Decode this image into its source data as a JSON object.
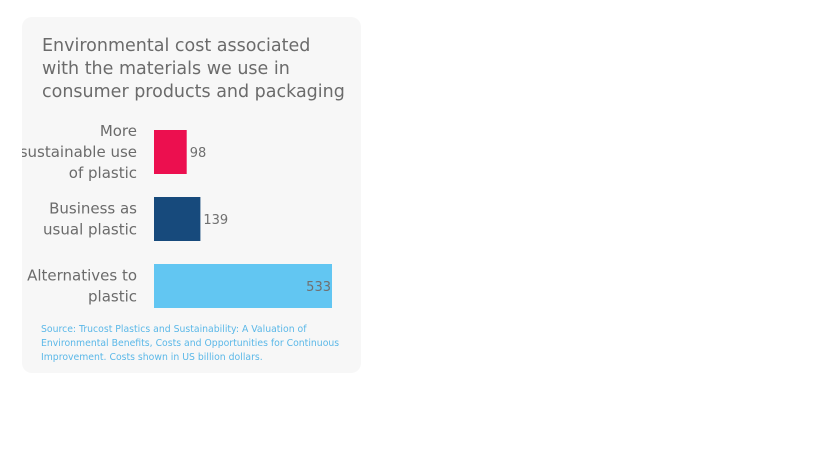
{
  "chart_data": {
    "type": "bar",
    "orientation": "horizontal",
    "title": "Environmental cost associated with the materials we use in consumer products and packaging",
    "categories": [
      [
        "More",
        "sustainable use",
        "of plastic"
      ],
      [
        "Business as",
        "usual plastic"
      ],
      [
        "Alternatives to",
        "plastic"
      ]
    ],
    "values": [
      98,
      139,
      533
    ],
    "value_labels": [
      "98",
      "139",
      "533"
    ],
    "colors": [
      "#ec0f4f",
      "#174a7c",
      "#62c6f2"
    ],
    "xlim": [
      0,
      533
    ],
    "grid": false,
    "source": "Source: Trucost Plastics and Sustainability: A Valuation of Environmental Benefits, Costs and Opportunities for Continuous Improvement. Costs shown in US billion dollars."
  }
}
